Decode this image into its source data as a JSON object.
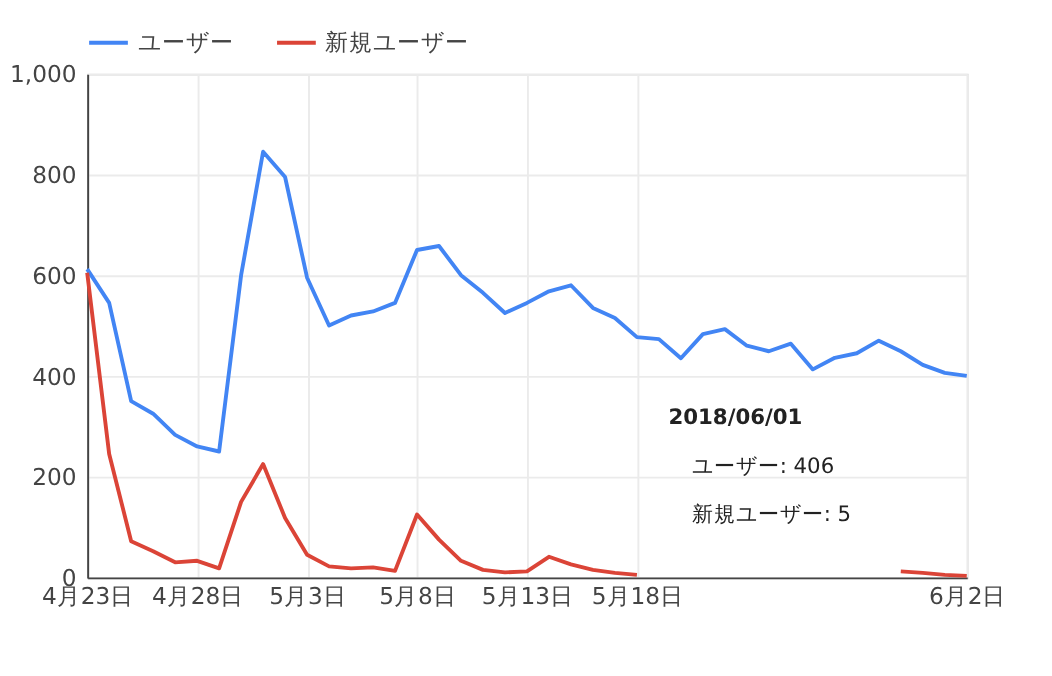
{
  "chart_data": {
    "type": "line",
    "x": [
      "2018-04-23",
      "2018-04-24",
      "2018-04-25",
      "2018-04-26",
      "2018-04-27",
      "2018-04-28",
      "2018-04-29",
      "2018-04-30",
      "2018-05-01",
      "2018-05-02",
      "2018-05-03",
      "2018-05-04",
      "2018-05-05",
      "2018-05-06",
      "2018-05-07",
      "2018-05-08",
      "2018-05-09",
      "2018-05-10",
      "2018-05-11",
      "2018-05-12",
      "2018-05-13",
      "2018-05-14",
      "2018-05-15",
      "2018-05-16",
      "2018-05-17",
      "2018-05-18",
      "2018-05-19",
      "2018-05-20",
      "2018-05-21",
      "2018-05-22",
      "2018-05-23",
      "2018-05-24",
      "2018-05-25",
      "2018-05-26",
      "2018-05-27",
      "2018-05-28",
      "2018-05-29",
      "2018-05-30",
      "2018-05-31",
      "2018-06-01",
      "2018-06-02"
    ],
    "series": [
      {
        "name": "ユーザー",
        "color": "#4285f4",
        "values": [
          612,
          545,
          350,
          325,
          283,
          260,
          250,
          600,
          845,
          795,
          595,
          500,
          520,
          528,
          545,
          650,
          658,
          600,
          565,
          525,
          545,
          568,
          580,
          535,
          515,
          477,
          473,
          435,
          483,
          493,
          460,
          449,
          464,
          413,
          436,
          445,
          470,
          449,
          422,
          406,
          400
        ]
      },
      {
        "name": "新規ユーザー",
        "color": "#db4437",
        "values": [
          605,
          245,
          72,
          52,
          30,
          33,
          18,
          150,
          225,
          118,
          45,
          22,
          18,
          20,
          13,
          125,
          75,
          33,
          15,
          10,
          12,
          41,
          26,
          15,
          9,
          5,
          null,
          null,
          null,
          null,
          null,
          null,
          null,
          null,
          null,
          null,
          null,
          12,
          9,
          5,
          3
        ]
      }
    ],
    "xlim": [
      "2018-04-23",
      "2018-06-02"
    ],
    "xticks": [
      {
        "value": "2018-04-23",
        "label": "4月23日"
      },
      {
        "value": "2018-04-28",
        "label": "4月28日"
      },
      {
        "value": "2018-05-03",
        "label": "5月3日"
      },
      {
        "value": "2018-05-08",
        "label": "5月8日"
      },
      {
        "value": "2018-05-13",
        "label": "5月13日"
      },
      {
        "value": "2018-05-18",
        "label": "5月18日"
      },
      {
        "value": "2018-06-02",
        "label": "6月2日"
      }
    ],
    "ylim": [
      0,
      1000
    ],
    "yticks": [
      0,
      200,
      400,
      600,
      800,
      {
        "value": 1000,
        "label": "1,000"
      }
    ],
    "grid": true,
    "legend": "top left",
    "annotations": [
      "2018/06/01",
      "ユーザー: 406",
      "新規ユーザー: 5"
    ]
  }
}
